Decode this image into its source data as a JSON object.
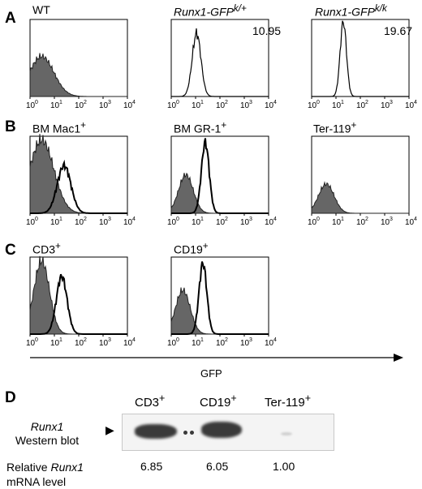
{
  "panels": {
    "A": "A",
    "B": "B",
    "C": "C",
    "D": "D"
  },
  "titles": {
    "wt": "WT",
    "ki_het_main": "Runx1-GFP",
    "ki_het_sup": "k/+",
    "ki_hom_main": "Runx1-GFP",
    "ki_hom_sup": "k/k",
    "mac1_main": "BM Mac1",
    "mac1_sup": "+",
    "gr1_main": "BM GR-1",
    "gr1_sup": "+",
    "ter119_main": "Ter-119",
    "ter119_sup": "+",
    "cd3_main": "CD3",
    "cd3_sup": "+",
    "cd19_main": "CD19",
    "cd19_sup": "+"
  },
  "values": {
    "ki_het": "10.95",
    "ki_hom": "19.67"
  },
  "axis": {
    "ticks": [
      "10",
      "10",
      "10",
      "10",
      "10"
    ],
    "exps": [
      "0",
      "1",
      "2",
      "3",
      "4"
    ],
    "label": "GFP"
  },
  "western": {
    "lanes": [
      {
        "main": "CD3",
        "sup": "+"
      },
      {
        "main": "CD19",
        "sup": "+"
      },
      {
        "main": "Ter-119",
        "sup": "+"
      }
    ],
    "label_italic": "Runx1",
    "label_rest": "Western blot",
    "mrna_pre": "Relative ",
    "mrna_italic": "Runx1",
    "mrna_post": "mRNA level",
    "mrna_values": [
      "6.85",
      "6.05",
      "1.00"
    ]
  },
  "chart_data": [
    {
      "type": "histogram",
      "panel": "A",
      "title": "WT",
      "x_scale": "log",
      "xlim": [
        1,
        10000
      ],
      "filled_peak_x": 3
    },
    {
      "type": "histogram",
      "panel": "A",
      "title": "Runx1-GFP k/+",
      "x_scale": "log",
      "xlim": [
        1,
        10000
      ],
      "open_peak_x": 11,
      "value": 10.95
    },
    {
      "type": "histogram",
      "panel": "A",
      "title": "Runx1-GFP k/k",
      "x_scale": "log",
      "xlim": [
        1,
        10000
      ],
      "open_peak_x": 20,
      "value": 19.67
    },
    {
      "type": "histogram",
      "panel": "B",
      "title": "BM Mac1+",
      "x_scale": "log",
      "xlim": [
        1,
        10000
      ],
      "filled_peak_x": 3,
      "open_peak_x": 25
    },
    {
      "type": "histogram",
      "panel": "B",
      "title": "BM GR-1+",
      "x_scale": "log",
      "xlim": [
        1,
        10000
      ],
      "filled_peak_x": 4,
      "open_peak_x": 25
    },
    {
      "type": "histogram",
      "panel": "B",
      "title": "Ter-119+",
      "x_scale": "log",
      "xlim": [
        1,
        10000
      ],
      "filled_peak_x": 4
    },
    {
      "type": "histogram",
      "panel": "C",
      "title": "CD3+",
      "x_scale": "log",
      "xlim": [
        1,
        10000
      ],
      "filled_peak_x": 3,
      "open_peak_x": 20
    },
    {
      "type": "histogram",
      "panel": "C",
      "title": "CD19+",
      "x_scale": "log",
      "xlim": [
        1,
        10000
      ],
      "filled_peak_x": 3,
      "open_peak_x": 20
    }
  ]
}
